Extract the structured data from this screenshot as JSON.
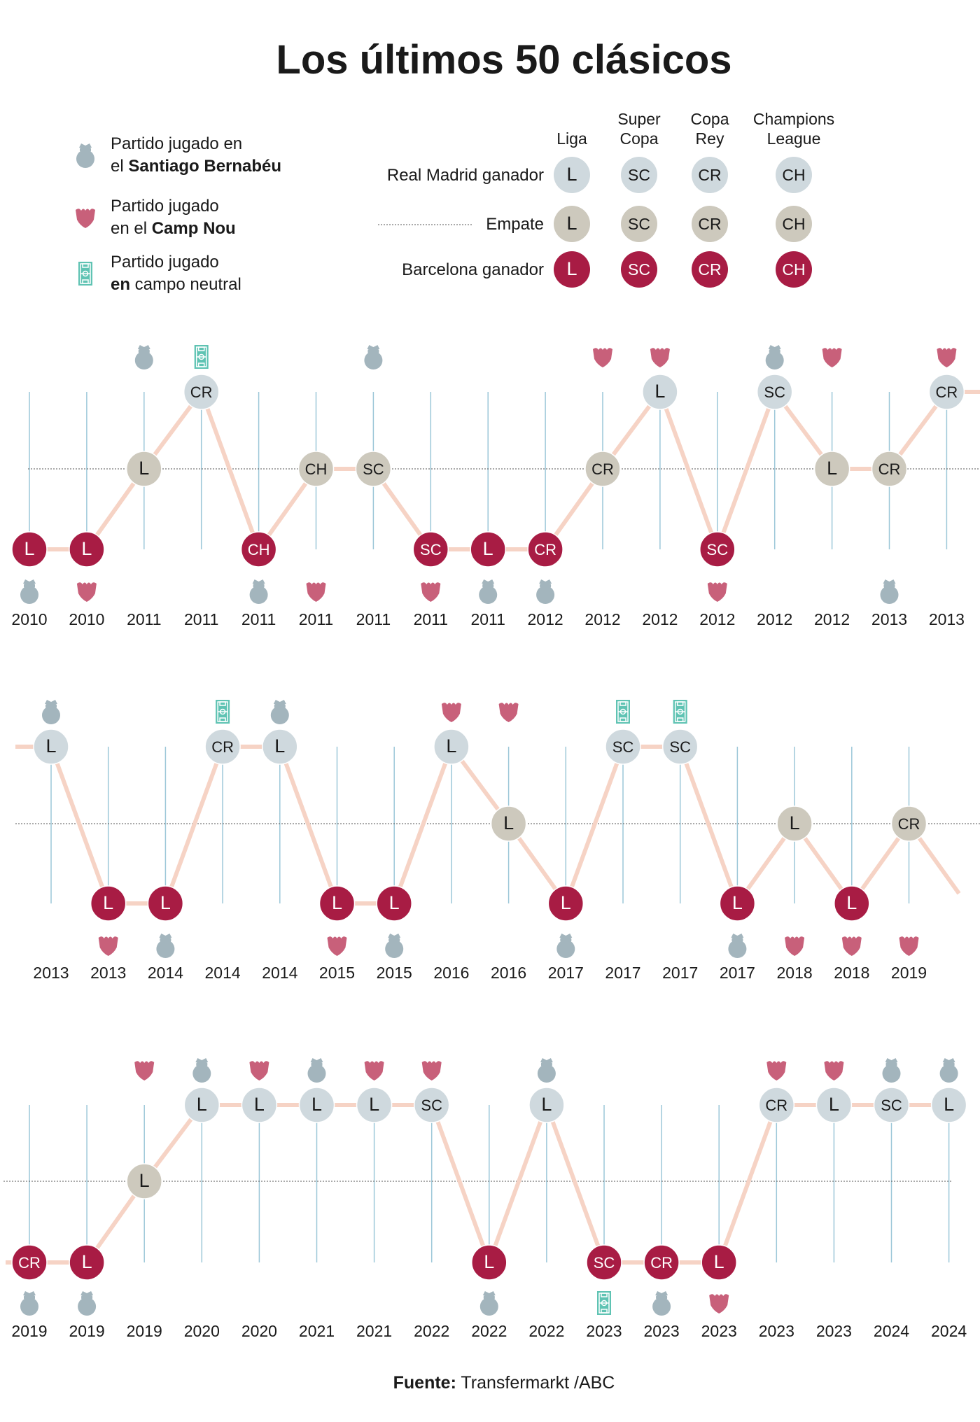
{
  "title": "Los últimos 50 clásicos",
  "source": {
    "label": "Fuente:",
    "text": "Transfermarkt /ABC"
  },
  "legend": {
    "venues": [
      {
        "id": "bernabeu",
        "icon": "bernabeu-trophy-icon",
        "line1": "Partido jugado en",
        "line2_prefix": "el ",
        "line2_bold": "Santiago Bernabéu",
        "line2_suffix": ""
      },
      {
        "id": "campnou",
        "icon": "barcelona-shield-icon",
        "line1": "Partido jugado",
        "line2_prefix": "en el ",
        "line2_bold": "Camp Nou",
        "line2_suffix": ""
      },
      {
        "id": "neutral",
        "icon": "neutral-field-icon",
        "line1": "Partido jugado",
        "line2_prefix": "",
        "line2_bold": "en",
        "line2_suffix": " campo neutral"
      }
    ],
    "competitions": [
      {
        "code": "L",
        "line1": "",
        "line2": "Liga"
      },
      {
        "code": "SC",
        "line1": "Super",
        "line2": "Copa"
      },
      {
        "code": "CR",
        "line1": "Copa",
        "line2": "Rey"
      },
      {
        "code": "CH",
        "line1": "Champions",
        "line2": "League"
      }
    ],
    "outcomes": [
      {
        "id": "rm",
        "label": "Real Madrid ganador"
      },
      {
        "id": "draw",
        "label": "Empate"
      },
      {
        "id": "fcb",
        "label": "Barcelona ganador"
      }
    ]
  },
  "colors": {
    "rm": "#cfd9de",
    "draw": "#cdc9bd",
    "fcb": "#a81c44",
    "bernabeu": "#a3b5bd",
    "campnou": "#c8607a",
    "neutral": "#5fc3b3",
    "line": "#f6d3c5",
    "grid": "#9cc7d8"
  },
  "chart_data": {
    "type": "line",
    "title": "Los últimos 50 clásicos",
    "y_levels": [
      "Barcelona ganador",
      "Empate",
      "Real Madrid ganador"
    ],
    "matches": [
      {
        "year": "2010",
        "comp": "L",
        "result": "fcb",
        "venue": "bernabeu"
      },
      {
        "year": "2010",
        "comp": "L",
        "result": "fcb",
        "venue": "campnou"
      },
      {
        "year": "2011",
        "comp": "L",
        "result": "draw",
        "venue": "bernabeu"
      },
      {
        "year": "2011",
        "comp": "CR",
        "result": "rm",
        "venue": "neutral"
      },
      {
        "year": "2011",
        "comp": "CH",
        "result": "fcb",
        "venue": "bernabeu"
      },
      {
        "year": "2011",
        "comp": "CH",
        "result": "draw",
        "venue": "campnou"
      },
      {
        "year": "2011",
        "comp": "SC",
        "result": "draw",
        "venue": "bernabeu"
      },
      {
        "year": "2011",
        "comp": "SC",
        "result": "fcb",
        "venue": "campnou"
      },
      {
        "year": "2011",
        "comp": "L",
        "result": "fcb",
        "venue": "bernabeu"
      },
      {
        "year": "2012",
        "comp": "CR",
        "result": "fcb",
        "venue": "bernabeu"
      },
      {
        "year": "2012",
        "comp": "CR",
        "result": "draw",
        "venue": "campnou"
      },
      {
        "year": "2012",
        "comp": "L",
        "result": "rm",
        "venue": "campnou"
      },
      {
        "year": "2012",
        "comp": "SC",
        "result": "fcb",
        "venue": "campnou"
      },
      {
        "year": "2012",
        "comp": "SC",
        "result": "rm",
        "venue": "bernabeu"
      },
      {
        "year": "2012",
        "comp": "L",
        "result": "draw",
        "venue": "campnou"
      },
      {
        "year": "2013",
        "comp": "CR",
        "result": "draw",
        "venue": "bernabeu"
      },
      {
        "year": "2013",
        "comp": "CR",
        "result": "rm",
        "venue": "campnou"
      },
      {
        "year": "2013",
        "comp": "L",
        "result": "rm",
        "venue": "bernabeu"
      },
      {
        "year": "2013",
        "comp": "L",
        "result": "fcb",
        "venue": "campnou"
      },
      {
        "year": "2014",
        "comp": "L",
        "result": "fcb",
        "venue": "bernabeu"
      },
      {
        "year": "2014",
        "comp": "CR",
        "result": "rm",
        "venue": "neutral"
      },
      {
        "year": "2014",
        "comp": "L",
        "result": "rm",
        "venue": "bernabeu"
      },
      {
        "year": "2015",
        "comp": "L",
        "result": "fcb",
        "venue": "campnou"
      },
      {
        "year": "2015",
        "comp": "L",
        "result": "fcb",
        "venue": "bernabeu"
      },
      {
        "year": "2016",
        "comp": "L",
        "result": "rm",
        "venue": "campnou"
      },
      {
        "year": "2016",
        "comp": "L",
        "result": "draw",
        "venue": "campnou"
      },
      {
        "year": "2017",
        "comp": "L",
        "result": "fcb",
        "venue": "bernabeu"
      },
      {
        "year": "2017",
        "comp": "SC",
        "result": "rm",
        "venue": "neutral"
      },
      {
        "year": "2017",
        "comp": "SC",
        "result": "rm",
        "venue": "neutral"
      },
      {
        "year": "2017",
        "comp": "L",
        "result": "fcb",
        "venue": "bernabeu"
      },
      {
        "year": "2018",
        "comp": "L",
        "result": "draw",
        "venue": "campnou"
      },
      {
        "year": "2018",
        "comp": "L",
        "result": "fcb",
        "venue": "campnou"
      },
      {
        "year": "2019",
        "comp": "CR",
        "result": "draw",
        "venue": "campnou"
      },
      {
        "year": "2019",
        "comp": "CR",
        "result": "fcb",
        "venue": "bernabeu"
      },
      {
        "year": "2019",
        "comp": "L",
        "result": "fcb",
        "venue": "bernabeu"
      },
      {
        "year": "2019",
        "comp": "L",
        "result": "draw",
        "venue": "campnou"
      },
      {
        "year": "2020",
        "comp": "L",
        "result": "rm",
        "venue": "bernabeu"
      },
      {
        "year": "2020",
        "comp": "L",
        "result": "rm",
        "venue": "campnou"
      },
      {
        "year": "2021",
        "comp": "L",
        "result": "rm",
        "venue": "bernabeu"
      },
      {
        "year": "2021",
        "comp": "L",
        "result": "rm",
        "venue": "campnou"
      },
      {
        "year": "2022",
        "comp": "SC",
        "result": "rm",
        "venue": "campnou"
      },
      {
        "year": "2022",
        "comp": "L",
        "result": "fcb",
        "venue": "bernabeu"
      },
      {
        "year": "2022",
        "comp": "L",
        "result": "rm",
        "venue": "bernabeu"
      },
      {
        "year": "2023",
        "comp": "SC",
        "result": "fcb",
        "venue": "neutral"
      },
      {
        "year": "2023",
        "comp": "CR",
        "result": "fcb",
        "venue": "bernabeu"
      },
      {
        "year": "2023",
        "comp": "L",
        "result": "fcb",
        "venue": "campnou"
      },
      {
        "year": "2023",
        "comp": "CR",
        "result": "rm",
        "venue": "campnou"
      },
      {
        "year": "2023",
        "comp": "L",
        "result": "rm",
        "venue": "campnou"
      },
      {
        "year": "2024",
        "comp": "SC",
        "result": "rm",
        "venue": "bernabeu"
      },
      {
        "year": "2024",
        "comp": "L",
        "result": "rm",
        "venue": "bernabeu"
      }
    ]
  }
}
